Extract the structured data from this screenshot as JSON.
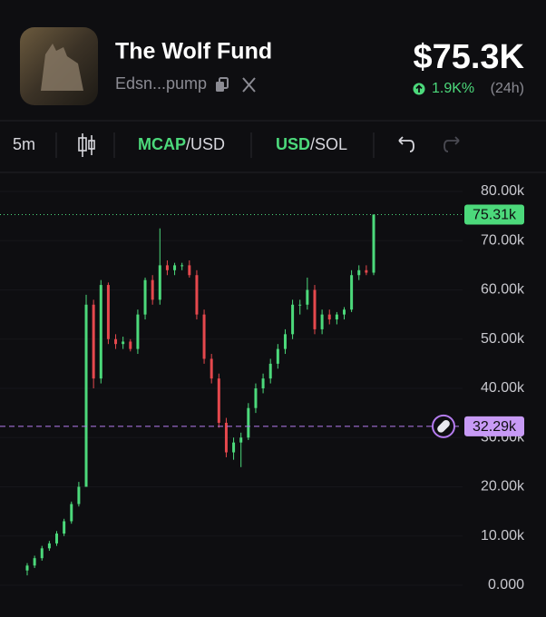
{
  "header": {
    "title": "The Wolf Fund",
    "address": "Edsn...pump",
    "price": "$75.3K",
    "change": "1.9K%",
    "period": "(24h)"
  },
  "toolbar": {
    "interval": "5m",
    "mcap_toggle": {
      "active": "MCAP",
      "rest": "/USD"
    },
    "currency_toggle": {
      "active": "USD",
      "rest": "/SOL"
    }
  },
  "chart_data": {
    "type": "candlestick",
    "open": [
      3000,
      4000,
      5500,
      7500,
      8500,
      10500,
      13000,
      16500,
      20000,
      57000,
      42000,
      61000,
      50000,
      49000,
      49500,
      48000,
      55000,
      62000,
      58000,
      65000,
      64000,
      65000,
      65000,
      63000,
      55000,
      46000,
      42000,
      33000,
      27000,
      29000,
      30000,
      36000,
      40000,
      42000,
      45000,
      48000,
      51000,
      57000,
      57000,
      60000,
      52000,
      55000,
      54000,
      55000,
      56000,
      63000,
      64000,
      63500
    ],
    "high": [
      4500,
      6000,
      8000,
      9000,
      11000,
      13500,
      17000,
      21000,
      59000,
      58000,
      62000,
      61500,
      51000,
      50500,
      50000,
      56000,
      62500,
      63000,
      72500,
      66000,
      65500,
      65500,
      66000,
      64000,
      56000,
      47000,
      43000,
      34000,
      30000,
      31000,
      37000,
      41000,
      43000,
      46000,
      49000,
      52000,
      58000,
      58000,
      62500,
      61000,
      56000,
      56000,
      55500,
      56500,
      64000,
      65000,
      65000,
      75310
    ],
    "low": [
      2000,
      3500,
      5000,
      7000,
      8000,
      10000,
      12500,
      16000,
      20000,
      40000,
      41000,
      49000,
      48000,
      48000,
      47500,
      47000,
      54000,
      57000,
      57000,
      63000,
      63000,
      64000,
      62500,
      54000,
      45000,
      41000,
      32000,
      26000,
      25500,
      24000,
      29500,
      35000,
      39000,
      41000,
      44000,
      47000,
      50000,
      55000,
      56000,
      51000,
      51000,
      53000,
      53000,
      54000,
      55500,
      62000,
      63000,
      63000
    ],
    "close": [
      4000,
      5500,
      7500,
      8500,
      10500,
      13000,
      16500,
      20000,
      57000,
      42000,
      61000,
      50000,
      49000,
      49500,
      48000,
      55000,
      62000,
      58000,
      65000,
      64000,
      65000,
      65000,
      63000,
      55000,
      46000,
      42000,
      33000,
      27000,
      29000,
      30000,
      36000,
      40000,
      42000,
      45000,
      48000,
      51000,
      57000,
      57000,
      60000,
      52000,
      55000,
      54000,
      55000,
      56000,
      63000,
      64000,
      63500,
      75310
    ],
    "ylim": [
      -6450,
      82950
    ],
    "yticks": [
      {
        "value": 0,
        "label": "0.000"
      },
      {
        "value": 10000,
        "label": "10.00k"
      },
      {
        "value": 20000,
        "label": "20.00k"
      },
      {
        "value": 30000,
        "label": "30.00k"
      },
      {
        "value": 40000,
        "label": "40.00k"
      },
      {
        "value": 50000,
        "label": "50.00k"
      },
      {
        "value": 60000,
        "label": "60.00k"
      },
      {
        "value": 70000,
        "label": "70.00k"
      },
      {
        "value": 80000,
        "label": "80.00k"
      }
    ],
    "grid": true,
    "up_color": "#4cd97b",
    "down_color": "#e5484d",
    "last_price": {
      "value": 75310,
      "label": "75.31k"
    },
    "marker_line": {
      "value": 32290,
      "label": "32.29k"
    }
  }
}
